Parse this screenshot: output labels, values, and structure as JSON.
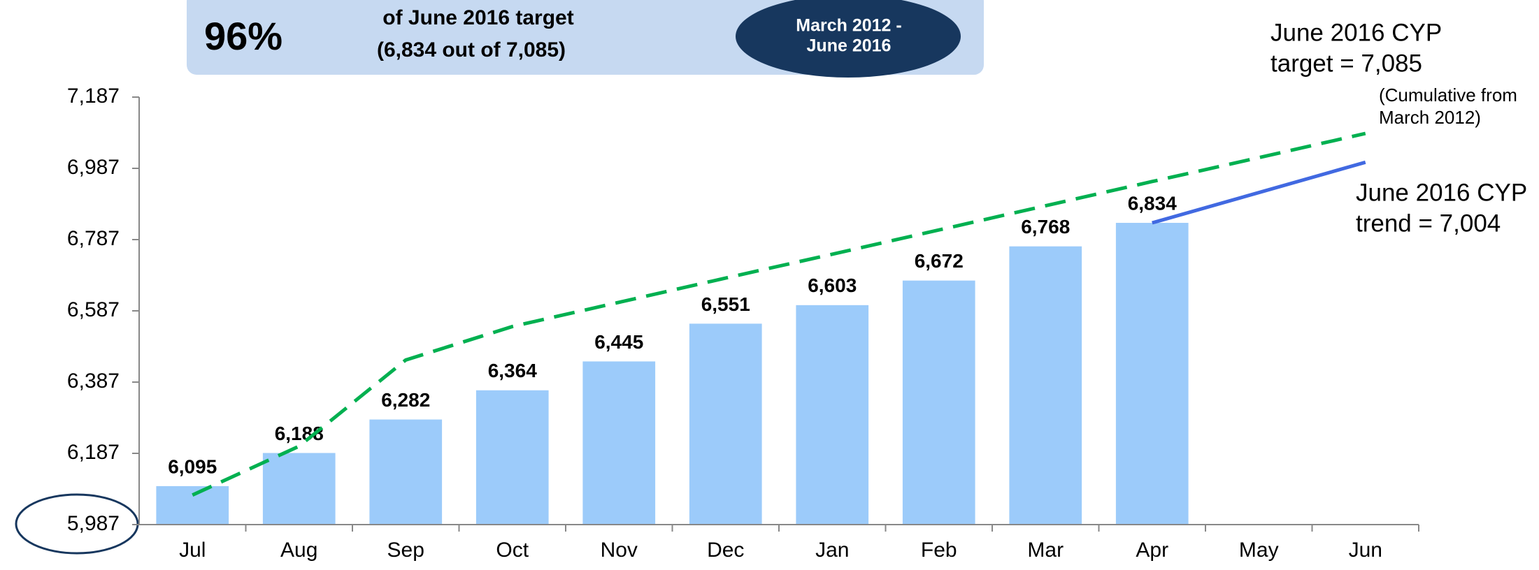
{
  "chart_data": {
    "type": "bar",
    "banner": {
      "percent": "96%",
      "line1": "of June 2016 target",
      "line2": "(6,834 out of 7,085)",
      "period": [
        "March 2012 -",
        "June 2016"
      ]
    },
    "annotations": {
      "target": [
        "June 2016 CYP",
        "target = 7,085"
      ],
      "target_note": [
        "(Cumulative from",
        "March 2012)"
      ],
      "trend": [
        "June 2016 CYP",
        "trend = 7,004"
      ]
    },
    "categories": [
      "Jul",
      "Aug",
      "Sep",
      "Oct",
      "Nov",
      "Dec",
      "Jan",
      "Feb",
      "Mar",
      "Apr",
      "May",
      "Jun"
    ],
    "values": [
      6095,
      6188,
      6282,
      6364,
      6445,
      6551,
      6603,
      6672,
      6768,
      6834,
      null,
      null
    ],
    "value_labels": [
      "6,095",
      "6,188",
      "6,282",
      "6,364",
      "6,445",
      "6,551",
      "6,603",
      "6,672",
      "6,768",
      "6,834",
      null,
      null
    ],
    "color": "#9ccbfa",
    "series": [
      {
        "color": "#00b050",
        "style": "dashed",
        "values": [
          6070,
          6207,
          6449,
          6543,
          6611,
          6679,
          6746,
          6814,
          6882,
          6950,
          7017,
          7085
        ]
      },
      {
        "color": "#4169e1",
        "style": "solid",
        "values": [
          null,
          null,
          null,
          null,
          null,
          null,
          null,
          null,
          null,
          6834,
          6919,
          7004
        ]
      }
    ],
    "ylim": [
      5987,
      7187
    ],
    "yticks": [
      {
        "value": 5987,
        "label": "5,987"
      },
      {
        "value": 6187,
        "label": "6,187"
      },
      {
        "value": 6387,
        "label": "6,387"
      },
      {
        "value": 6587,
        "label": "6,587"
      },
      {
        "value": 6787,
        "label": "6,787"
      },
      {
        "value": 6987,
        "label": "6,987"
      },
      {
        "value": 7187,
        "label": "7,187"
      }
    ],
    "grid": false
  }
}
